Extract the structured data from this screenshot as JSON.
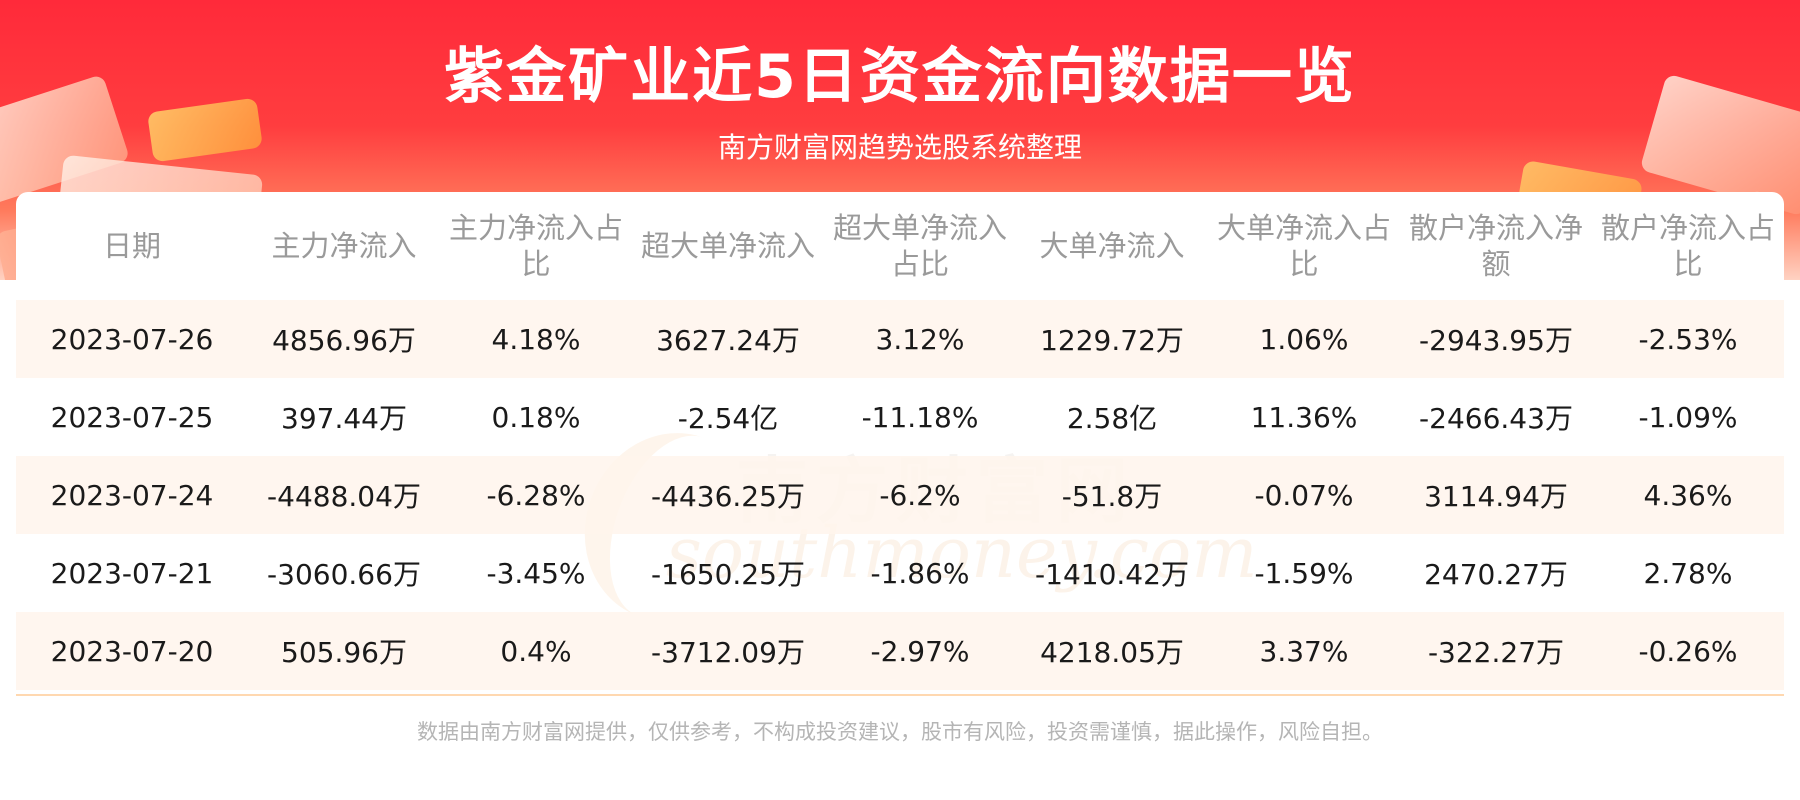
{
  "header": {
    "title": "紫金矿业近5日资金流向数据一览",
    "subtitle": "南方财富网趋势选股系统整理"
  },
  "watermark": {
    "cn": "南方财富网",
    "en": "southmoney.com"
  },
  "table": {
    "columns": [
      "日期",
      "主力净流入",
      "主力净流入占比",
      "超大单净流入",
      "超大单净流入占比",
      "大单净流入",
      "大单净流入占比",
      "散户净流入净额",
      "散户净流入占比"
    ],
    "rows": [
      [
        "2023-07-26",
        "4856.96万",
        "4.18%",
        "3627.24万",
        "3.12%",
        "1229.72万",
        "1.06%",
        "-2943.95万",
        "-2.53%"
      ],
      [
        "2023-07-25",
        "397.44万",
        "0.18%",
        "-2.54亿",
        "-11.18%",
        "2.58亿",
        "11.36%",
        "-2466.43万",
        "-1.09%"
      ],
      [
        "2023-07-24",
        "-4488.04万",
        "-6.28%",
        "-4436.25万",
        "-6.2%",
        "-51.8万",
        "-0.07%",
        "3114.94万",
        "4.36%"
      ],
      [
        "2023-07-21",
        "-3060.66万",
        "-3.45%",
        "-1650.25万",
        "-1.86%",
        "-1410.42万",
        "-1.59%",
        "2470.27万",
        "2.78%"
      ],
      [
        "2023-07-20",
        "505.96万",
        "0.4%",
        "-3712.09万",
        "-2.97%",
        "4218.05万",
        "3.37%",
        "-322.27万",
        "-0.26%"
      ]
    ]
  },
  "footer": {
    "disclaimer": "数据由南方财富网提供，仅供参考，不构成投资建议，股市有风险，投资需谨慎，据此操作，风险自担。"
  },
  "colors": {
    "banner_red": "#ff2a3a",
    "row_tint": "#fff5ec",
    "header_text": "#9a9a9a"
  }
}
